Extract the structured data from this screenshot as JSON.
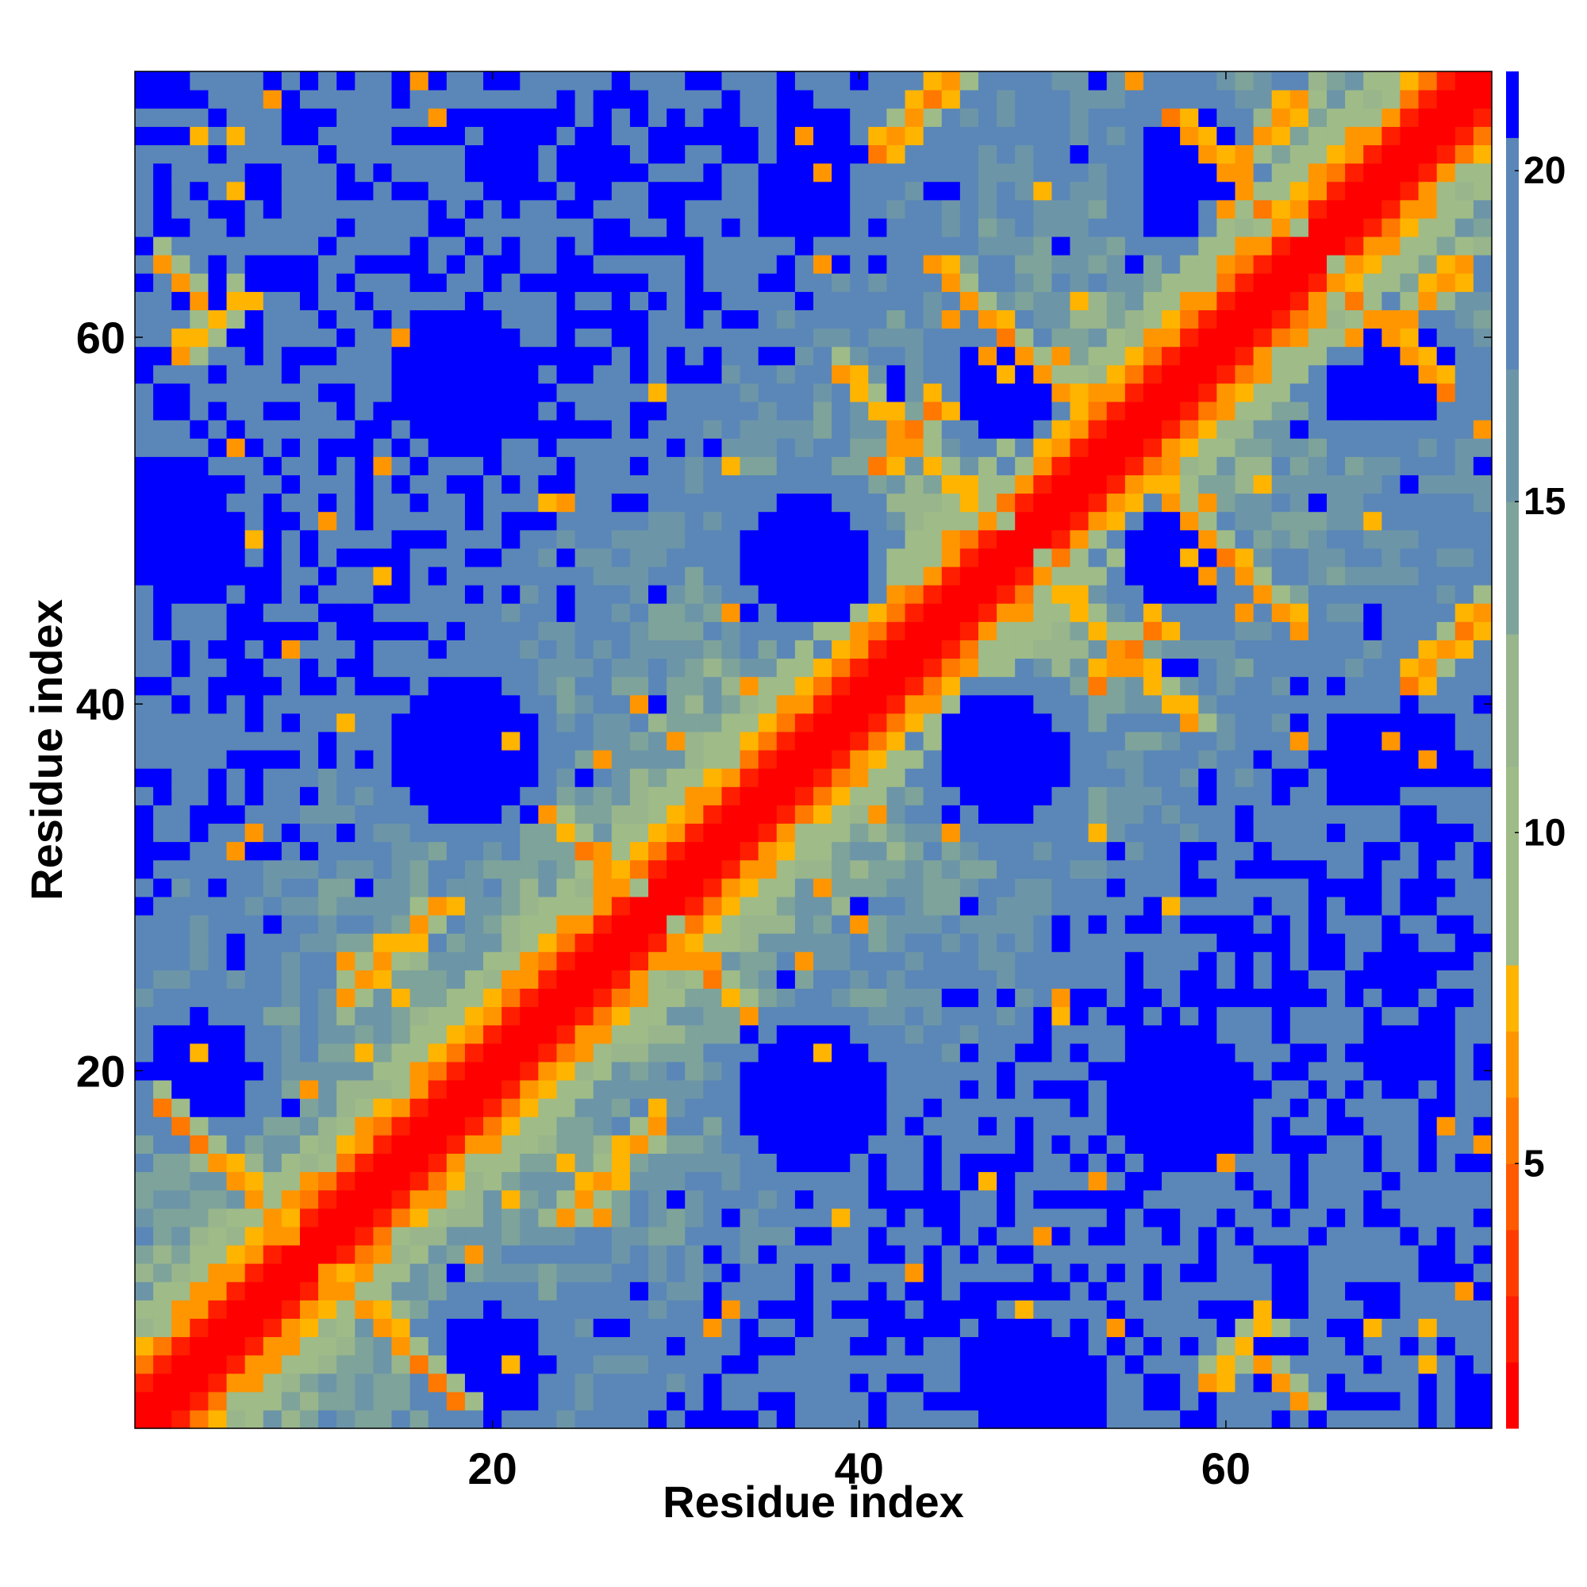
{
  "chart_data": {
    "type": "heatmap",
    "title": "",
    "xlabel": "Residue index",
    "ylabel": "Residue index",
    "n": 74,
    "xlim": [
      1,
      74
    ],
    "ylim": [
      1,
      74
    ],
    "x_ticks": [
      20,
      40,
      60
    ],
    "y_ticks": [
      20,
      40,
      60
    ],
    "value_range": [
      1,
      21.5
    ],
    "colorbar": {
      "ticks": [
        5,
        10,
        15,
        20
      ],
      "bands": [
        {
          "from": 1,
          "to": 2,
          "color": "#ff0000"
        },
        {
          "from": 2,
          "to": 3,
          "color": "#ff1e00"
        },
        {
          "from": 3,
          "to": 4,
          "color": "#ff3c00"
        },
        {
          "from": 4,
          "to": 5,
          "color": "#ff5a00"
        },
        {
          "from": 5,
          "to": 6,
          "color": "#ff7800"
        },
        {
          "from": 6,
          "to": 7,
          "color": "#ff9600"
        },
        {
          "from": 7,
          "to": 8,
          "color": "#ffb400"
        },
        {
          "from": 8,
          "to": 11,
          "color": "#9fbb88"
        },
        {
          "from": 11,
          "to": 13,
          "color": "#98b58c"
        },
        {
          "from": 13,
          "to": 15,
          "color": "#7ea39a"
        },
        {
          "from": 15,
          "to": 17,
          "color": "#6d95a8"
        },
        {
          "from": 17,
          "to": 20.5,
          "color": "#5a87b8"
        },
        {
          "from": 20.5,
          "to": 21.5,
          "color": "#0000ff"
        }
      ]
    },
    "contact_segments": [
      {
        "i": 2,
        "j": 18,
        "span": 8,
        "dir": -1,
        "dist": 6
      },
      {
        "i": 12,
        "j": 24,
        "span": 6,
        "dir": 1,
        "dist": 6.5
      },
      {
        "i": 23,
        "j": 34,
        "span": 7,
        "dir": -1,
        "dist": 6
      },
      {
        "i": 39,
        "j": 58,
        "span": 10,
        "dir": -1,
        "dist": 6.5
      },
      {
        "i": 41,
        "j": 70,
        "span": 6,
        "dir": 1,
        "dist": 6
      },
      {
        "i": 44,
        "j": 64,
        "span": 8,
        "dir": -1,
        "dist": 6
      },
      {
        "i": 57,
        "j": 72,
        "span": 7,
        "dir": -1,
        "dist": 6
      },
      {
        "i": 61,
        "j": 70,
        "span": 4,
        "dir": 1,
        "dist": 6.5
      },
      {
        "i": 3,
        "j": 59,
        "span": 4,
        "dir": 1,
        "dist": 6.5
      },
      {
        "i": 41,
        "j": 53,
        "span": 4,
        "dir": 1,
        "dist": 6
      },
      {
        "i": 62,
        "j": 4,
        "span": 3,
        "dir": -1,
        "dist": 6.5
      }
    ],
    "far_regions": [
      {
        "cx": 37.5,
        "cy": 70.5,
        "r": 2.5
      },
      {
        "cx": 37.5,
        "cy": 47.5,
        "r": 3.5
      },
      {
        "cx": 37.5,
        "cy": 17.5,
        "r": 3.5
      },
      {
        "cx": 58,
        "cy": 69.5,
        "r": 2.5
      },
      {
        "cx": 57.5,
        "cy": 47.5,
        "r": 2.5
      },
      {
        "cx": 57.5,
        "cy": 18.5,
        "r": 4
      },
      {
        "cx": 48,
        "cy": 57,
        "r": 2.5
      },
      {
        "cx": 48,
        "cy": 37,
        "r": 3.5
      },
      {
        "cx": 67.5,
        "cy": 57,
        "r": 2
      },
      {
        "cx": 67.5,
        "cy": 37,
        "r": 2.5
      },
      {
        "cx": 18.5,
        "cy": 57.5,
        "r": 4
      },
      {
        "cx": 18.5,
        "cy": 37.5,
        "r": 4
      },
      {
        "cx": 2.5,
        "cy": 50.5,
        "r": 3
      },
      {
        "cx": 4,
        "cy": 20,
        "r": 3
      },
      {
        "cx": 20,
        "cy": 4,
        "r": 3
      },
      {
        "cx": 48.5,
        "cy": 3.5,
        "r": 3
      },
      {
        "cx": 20.5,
        "cy": 69.5,
        "r": 2
      },
      {
        "cx": 69.5,
        "cy": 20.5,
        "r": 2
      }
    ],
    "noise_seed": 20240521
  }
}
